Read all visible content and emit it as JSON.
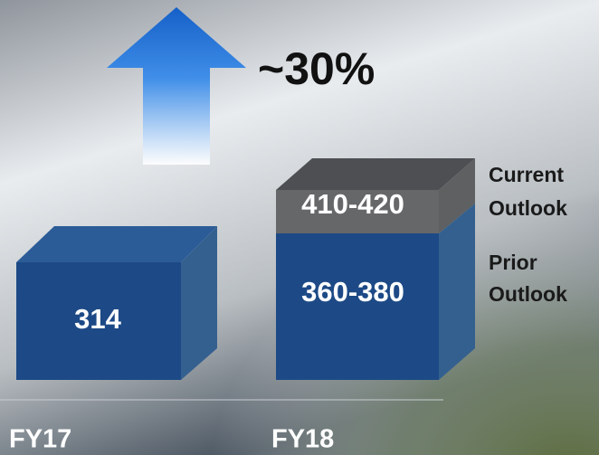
{
  "headline": "~30%",
  "bars": [
    {
      "label": "FY17",
      "value": "314"
    },
    {
      "label": "FY18",
      "prior": "360-380",
      "current": "410-420"
    }
  ],
  "legend": {
    "current": [
      "Current",
      "Outlook"
    ],
    "prior": [
      "Prior",
      "Outlook"
    ]
  }
}
